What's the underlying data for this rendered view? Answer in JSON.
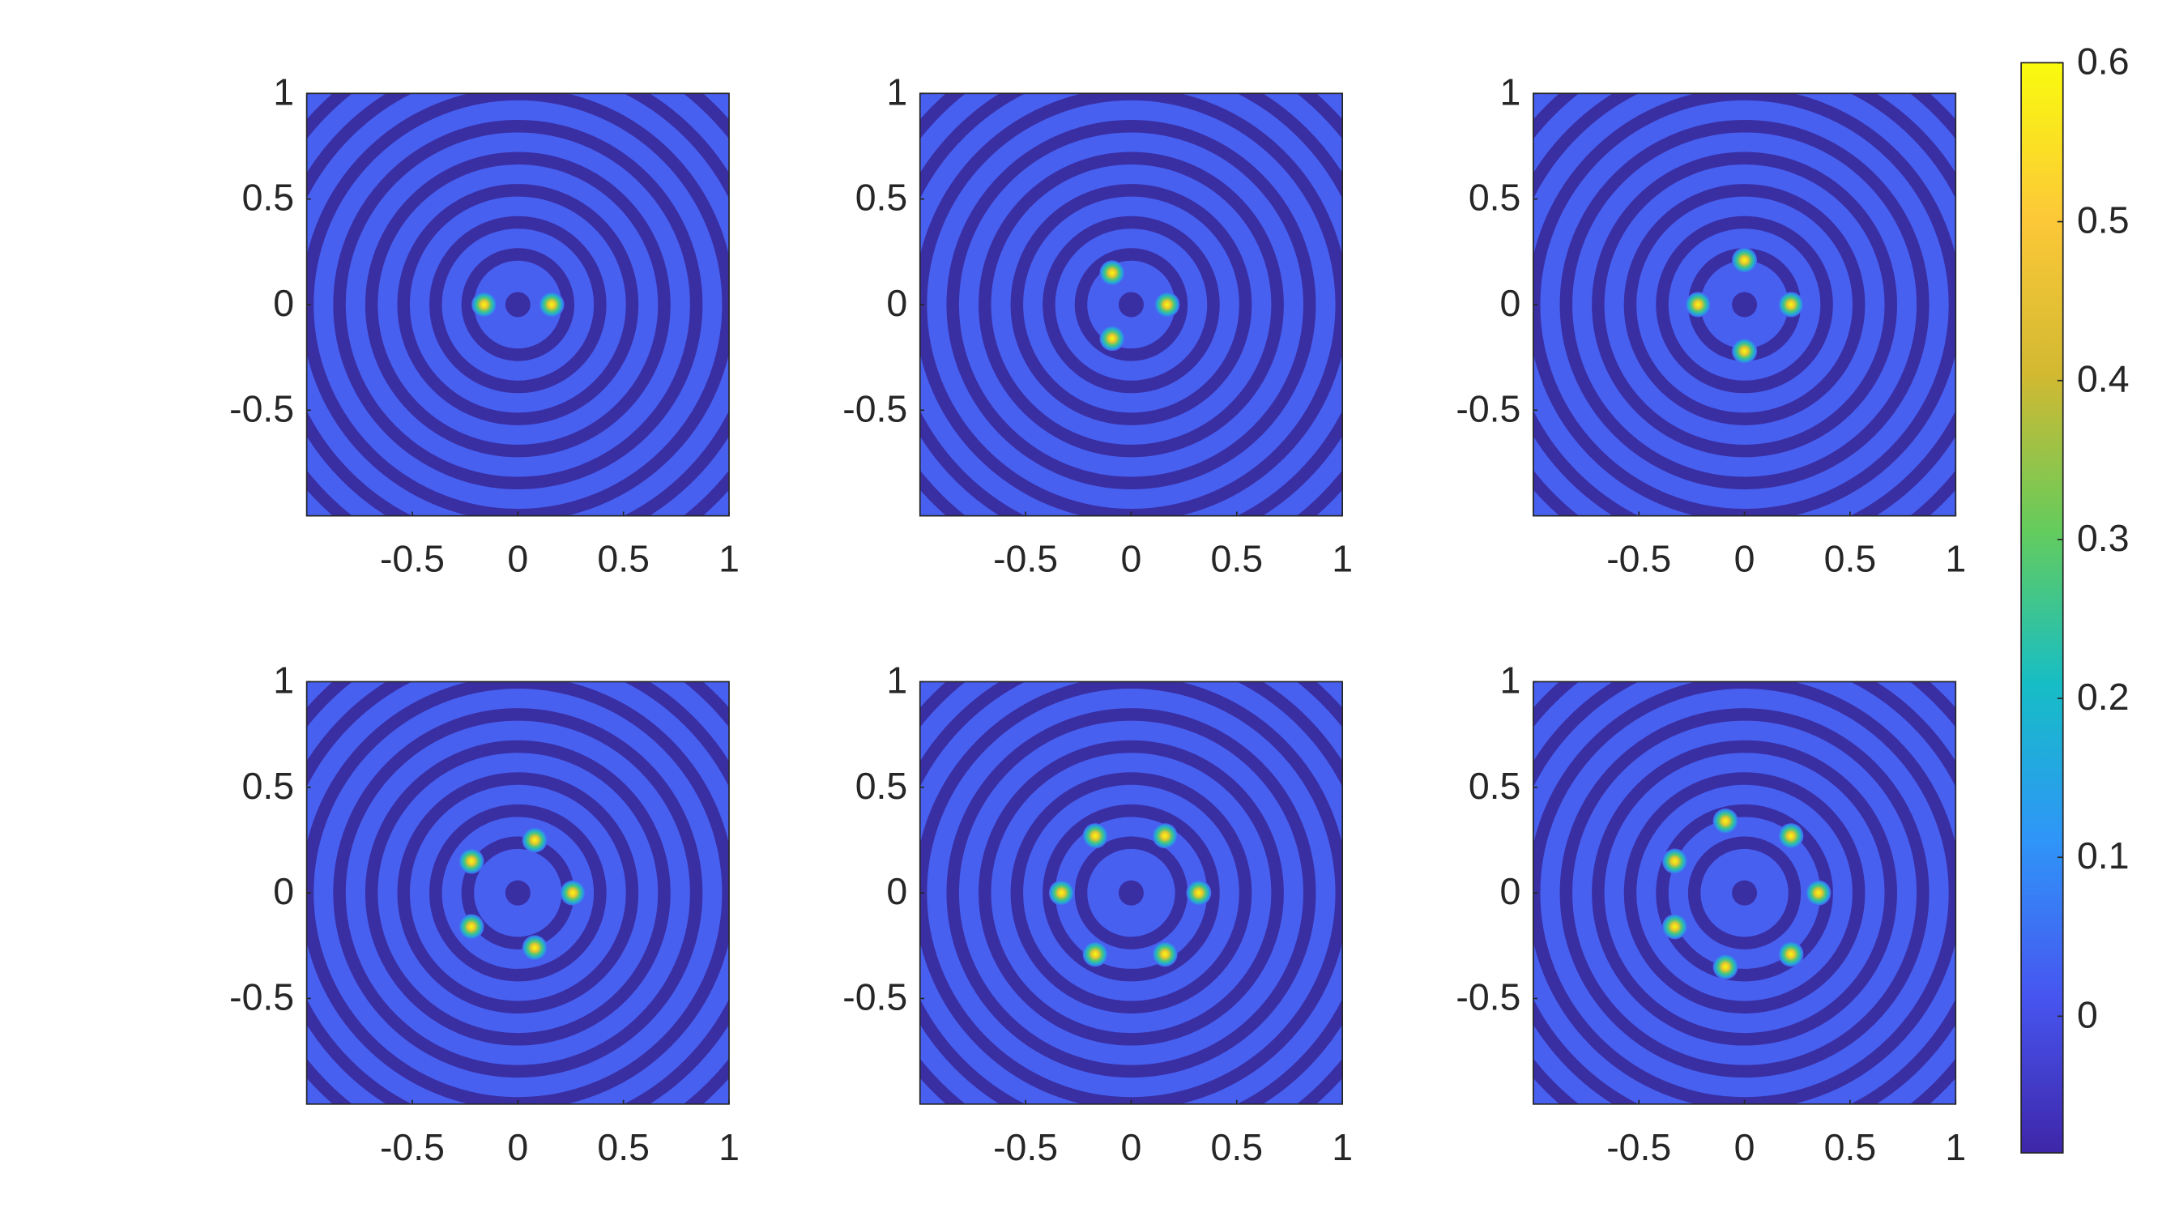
{
  "chart_data": [
    {
      "type": "scatter",
      "x": [
        -0.16,
        0.16
      ],
      "y": [
        0,
        0
      ],
      "color": "#f9fb0e",
      "xlim": [
        -1,
        1
      ],
      "ylim": [
        -1,
        1
      ],
      "xticks": [
        -0.5,
        0,
        0.5,
        1
      ],
      "yticks": [
        -0.5,
        0,
        0.5,
        1
      ]
    },
    {
      "type": "scatter",
      "x": [
        -0.09,
        0.17,
        -0.09
      ],
      "y": [
        0.15,
        0,
        -0.16
      ],
      "color": "#f9fb0e",
      "xlim": [
        -1,
        1
      ],
      "ylim": [
        -1,
        1
      ],
      "xticks": [
        -0.5,
        0,
        0.5,
        1
      ],
      "yticks": [
        -0.5,
        0,
        0.5,
        1
      ]
    },
    {
      "type": "scatter",
      "x": [
        0,
        -0.22,
        0.22,
        0
      ],
      "y": [
        0.21,
        0,
        0,
        -0.22
      ],
      "color": "#f9fb0e",
      "xlim": [
        -1,
        1
      ],
      "ylim": [
        -1,
        1
      ],
      "xticks": [
        -0.5,
        0,
        0.5,
        1
      ],
      "yticks": [
        -0.5,
        0,
        0.5,
        1
      ]
    },
    {
      "type": "scatter",
      "x": [
        0.08,
        -0.22,
        0.26,
        -0.22,
        0.08
      ],
      "y": [
        0.25,
        0.15,
        0,
        -0.16,
        -0.26
      ],
      "color": "#f9fb0e",
      "xlim": [
        -1,
        1
      ],
      "ylim": [
        -1,
        1
      ],
      "xticks": [
        -0.5,
        0,
        0.5,
        1
      ],
      "yticks": [
        -0.5,
        0,
        0.5,
        1
      ]
    },
    {
      "type": "scatter",
      "x": [
        -0.17,
        0.16,
        -0.33,
        0.32,
        -0.17,
        0.16
      ],
      "y": [
        0.27,
        0.27,
        0,
        0,
        -0.29,
        -0.29
      ],
      "color": "#f9fb0e",
      "xlim": [
        -1,
        1
      ],
      "ylim": [
        -1,
        1
      ],
      "xticks": [
        -0.5,
        0,
        0.5,
        1
      ],
      "yticks": [
        -0.5,
        0,
        0.5,
        1
      ]
    },
    {
      "type": "scatter",
      "x": [
        -0.09,
        0.22,
        -0.33,
        0.35,
        -0.33,
        0.22,
        -0.09
      ],
      "y": [
        0.34,
        0.27,
        0.15,
        0,
        -0.16,
        -0.29,
        -0.35
      ],
      "color": "#f9fb0e",
      "xlim": [
        -1,
        1
      ],
      "ylim": [
        -1,
        1
      ],
      "xticks": [
        -0.5,
        0,
        0.5,
        1
      ],
      "yticks": [
        -0.5,
        0,
        0.5,
        1
      ]
    },
    {
      "type": "colorbar",
      "ylim": [
        -0.086,
        0.6
      ],
      "yticks": [
        0,
        0.1,
        0.2,
        0.3,
        0.4,
        0.5,
        0.6
      ],
      "colormap": [
        "#3e26a8",
        "#4755f0",
        "#2f95f8",
        "#16bdc6",
        "#64cc5c",
        "#d2b931",
        "#fcc838",
        "#f9fb0e"
      ]
    }
  ]
}
